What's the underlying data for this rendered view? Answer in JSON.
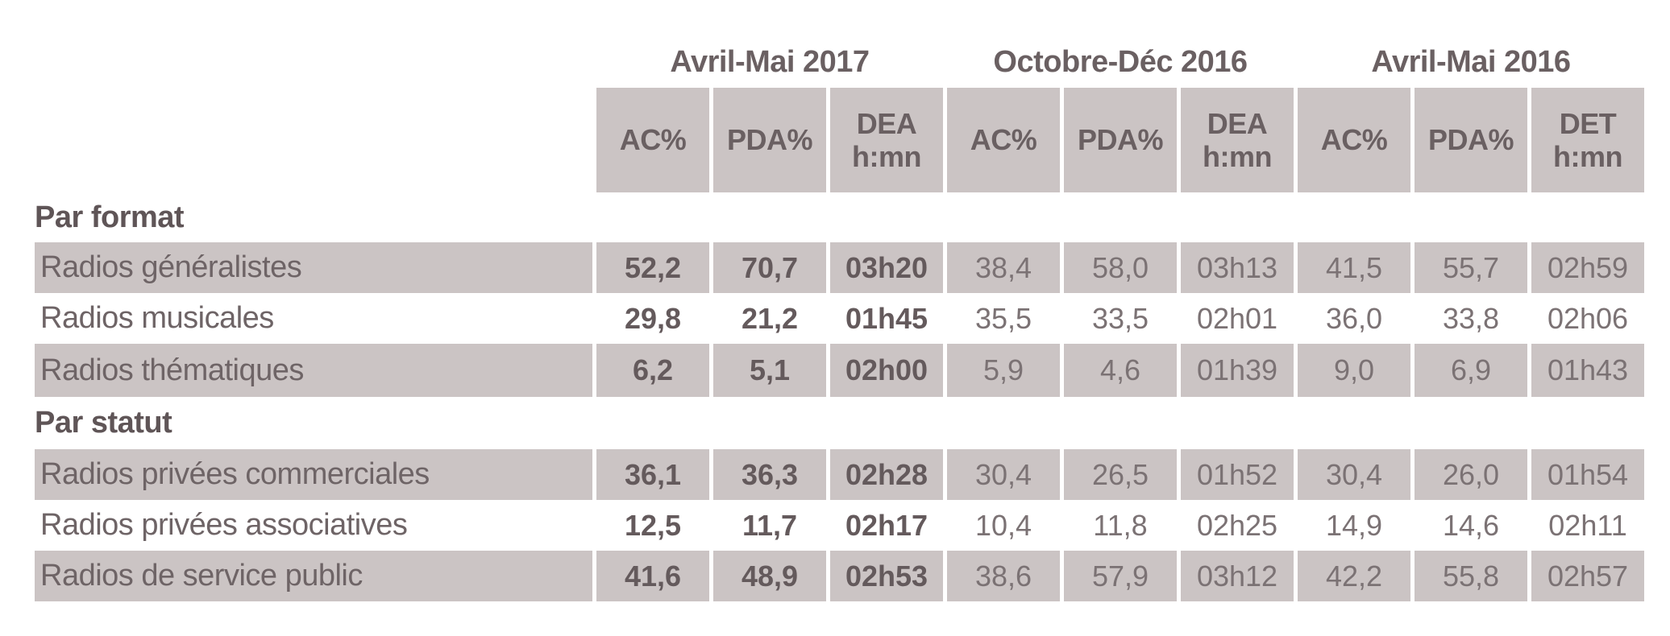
{
  "colors": {
    "band": "#cbc4c4",
    "header_text": "#6a6062",
    "section_text": "#5f5557",
    "row_label_text": "#6e6466",
    "value_bold_text": "#645a5c",
    "value_regular_text": "#7b7274"
  },
  "table": {
    "period_groups": [
      {
        "label": "Avril-Mai 2017",
        "columns": [
          {
            "l1": "AC%",
            "l2": ""
          },
          {
            "l1": "PDA%",
            "l2": ""
          },
          {
            "l1": "DEA",
            "l2": "h:mn"
          }
        ]
      },
      {
        "label": "Octobre-Déc 2016",
        "columns": [
          {
            "l1": "AC%",
            "l2": ""
          },
          {
            "l1": "PDA%",
            "l2": ""
          },
          {
            "l1": "DEA",
            "l2": "h:mn"
          }
        ]
      },
      {
        "label": "Avril-Mai 2016",
        "columns": [
          {
            "l1": "AC%",
            "l2": ""
          },
          {
            "l1": "PDA%",
            "l2": ""
          },
          {
            "l1": "DET",
            "l2": "h:mn"
          }
        ]
      }
    ],
    "sections": [
      {
        "label": "Par format",
        "rows": [
          {
            "label": "Radios généralistes",
            "shaded": true,
            "values": [
              "52,2",
              "70,7",
              "03h20",
              "38,4",
              "58,0",
              "03h13",
              "41,5",
              "55,7",
              "02h59"
            ]
          },
          {
            "label": "Radios musicales",
            "shaded": false,
            "values": [
              "29,8",
              "21,2",
              "01h45",
              "35,5",
              "33,5",
              "02h01",
              "36,0",
              "33,8",
              "02h06"
            ]
          },
          {
            "label": "Radios thématiques",
            "shaded": true,
            "values": [
              "6,2",
              "5,1",
              "02h00",
              "5,9",
              "4,6",
              "01h39",
              "9,0",
              "6,9",
              "01h43"
            ]
          }
        ]
      },
      {
        "label": "Par statut",
        "rows": [
          {
            "label": "Radios privées commerciales",
            "shaded": true,
            "values": [
              "36,1",
              "36,3",
              "02h28",
              "30,4",
              "26,5",
              "01h52",
              "30,4",
              "26,0",
              "01h54"
            ]
          },
          {
            "label": "Radios privées associatives",
            "shaded": false,
            "values": [
              "12,5",
              "11,7",
              "02h17",
              "10,4",
              "11,8",
              "02h25",
              "14,9",
              "14,6",
              "02h11"
            ]
          },
          {
            "label": "Radios de service public",
            "shaded": true,
            "values": [
              "41,6",
              "48,9",
              "02h53",
              "38,6",
              "57,9",
              "03h12",
              "42,2",
              "55,8",
              "02h57"
            ]
          }
        ]
      }
    ]
  },
  "chart_data": {
    "type": "table",
    "column_groups": [
      "Avril-Mai 2017",
      "Octobre-Déc 2016",
      "Avril-Mai 2016"
    ],
    "columns": [
      "AC%",
      "PDA%",
      "DEA h:mn",
      "AC%",
      "PDA%",
      "DEA h:mn",
      "AC%",
      "PDA%",
      "DET h:mn"
    ],
    "rows": [
      {
        "section": "Par format",
        "label": "Radios généralistes",
        "values": [
          "52,2",
          "70,7",
          "03h20",
          "38,4",
          "58,0",
          "03h13",
          "41,5",
          "55,7",
          "02h59"
        ]
      },
      {
        "section": "Par format",
        "label": "Radios musicales",
        "values": [
          "29,8",
          "21,2",
          "01h45",
          "35,5",
          "33,5",
          "02h01",
          "36,0",
          "33,8",
          "02h06"
        ]
      },
      {
        "section": "Par format",
        "label": "Radios thématiques",
        "values": [
          "6,2",
          "5,1",
          "02h00",
          "5,9",
          "4,6",
          "01h39",
          "9,0",
          "6,9",
          "01h43"
        ]
      },
      {
        "section": "Par statut",
        "label": "Radios privées commerciales",
        "values": [
          "36,1",
          "36,3",
          "02h28",
          "30,4",
          "26,5",
          "01h52",
          "30,4",
          "26,0",
          "01h54"
        ]
      },
      {
        "section": "Par statut",
        "label": "Radios privées associatives",
        "values": [
          "12,5",
          "11,7",
          "02h17",
          "10,4",
          "11,8",
          "02h25",
          "14,9",
          "14,6",
          "02h11"
        ]
      },
      {
        "section": "Par statut",
        "label": "Radios de service public",
        "values": [
          "41,6",
          "48,9",
          "02h53",
          "38,6",
          "57,9",
          "03h12",
          "42,2",
          "55,8",
          "02h57"
        ]
      }
    ]
  }
}
